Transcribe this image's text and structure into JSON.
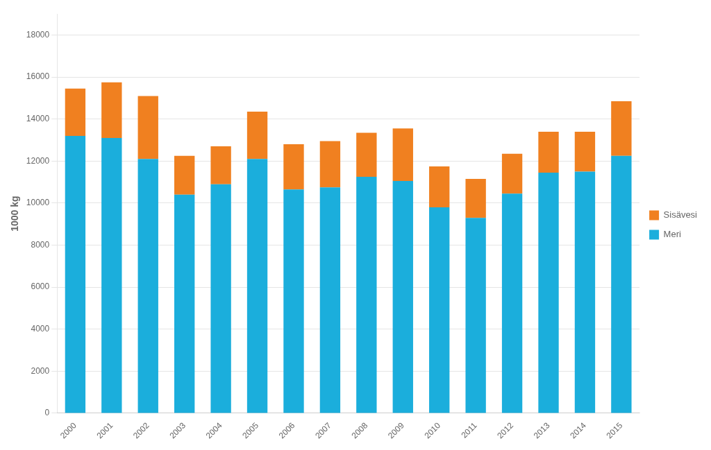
{
  "chart_data": {
    "type": "bar",
    "stacked": true,
    "ylabel": "1000 kg",
    "categories": [
      "2000",
      "2001",
      "2002",
      "2003",
      "2004",
      "2005",
      "2006",
      "2007",
      "2008",
      "2009",
      "2010",
      "2011",
      "2012",
      "2013",
      "2014",
      "2015"
    ],
    "series": [
      {
        "name": "Meri",
        "color": "#1BAEDC",
        "values": [
          13200,
          13100,
          12100,
          10400,
          10900,
          12100,
          10650,
          10750,
          11250,
          11050,
          9800,
          9300,
          10450,
          11450,
          11500,
          12250
        ]
      },
      {
        "name": "Sisävesi",
        "color": "#F08020",
        "values": [
          2250,
          2650,
          3000,
          1850,
          1800,
          2250,
          2150,
          2200,
          2100,
          2500,
          1950,
          1850,
          1900,
          1950,
          1900,
          2600
        ]
      }
    ],
    "ylim": [
      0,
      19000
    ],
    "yticks": [
      0,
      2000,
      4000,
      6000,
      8000,
      10000,
      12000,
      14000,
      16000,
      18000
    ],
    "grid": true,
    "legend": "right"
  }
}
